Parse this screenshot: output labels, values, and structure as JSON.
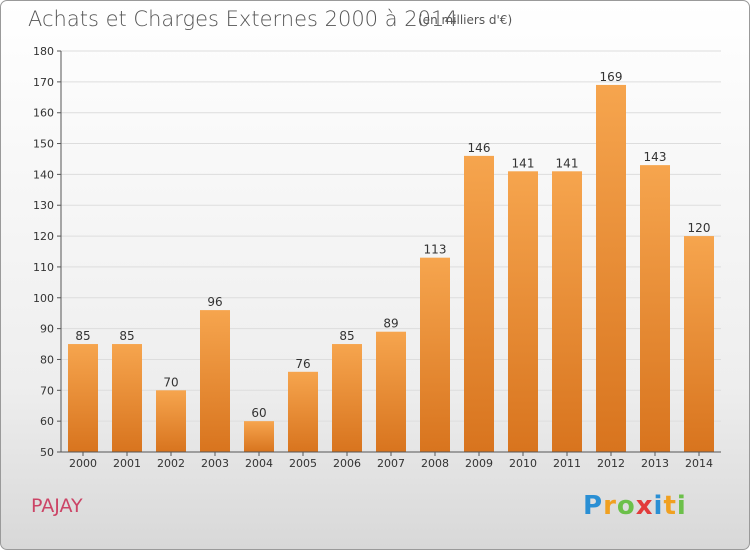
{
  "title": "Achats et Charges Externes 2000 à 2014",
  "subtitle": "(en milliers d'€)",
  "commune": "PAJAY",
  "logo": {
    "letters": [
      "P",
      "r",
      "o",
      "x",
      "i",
      "t",
      "i"
    ],
    "colors": [
      "#2a8fd4",
      "#f0a020",
      "#6cc04a",
      "#e23b3b",
      "#2a8fd4",
      "#f0a020",
      "#6cc04a"
    ]
  },
  "colors": {
    "bar_top": "#f6a54e",
    "bar_bottom": "#d8741e",
    "axis": "#555555",
    "grid": "#dddddd",
    "text": "#333333"
  },
  "chart_data": {
    "type": "bar",
    "categories": [
      "2000",
      "2001",
      "2002",
      "2003",
      "2004",
      "2005",
      "2006",
      "2007",
      "2008",
      "2009",
      "2010",
      "2011",
      "2012",
      "2013",
      "2014"
    ],
    "values": [
      85,
      85,
      70,
      96,
      60,
      76,
      85,
      89,
      113,
      146,
      141,
      141,
      169,
      143,
      120
    ],
    "title": "Achats et Charges Externes 2000 à 2014",
    "xlabel": "",
    "ylabel": "",
    "ylim": [
      50,
      180
    ],
    "yticks": [
      50,
      60,
      70,
      80,
      90,
      100,
      110,
      120,
      130,
      140,
      150,
      160,
      170,
      180
    ],
    "grid": true,
    "legend": "none"
  }
}
